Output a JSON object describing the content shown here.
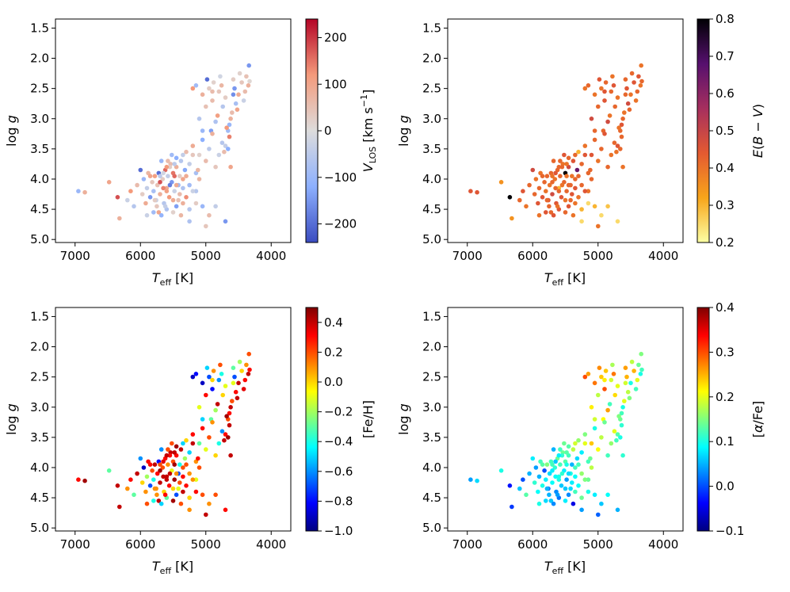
{
  "chart_data": [
    {
      "type": "scatter",
      "panel": "top-left",
      "xlabel": "T_eff [K]",
      "ylabel": "log g",
      "xlim": [
        7300,
        3700
      ],
      "ylim": [
        5.05,
        1.35
      ],
      "xticks": [
        "7000",
        "6000",
        "5000",
        "4000"
      ],
      "yticks": [
        "1.5",
        "2.0",
        "2.5",
        "3.0",
        "3.5",
        "4.0",
        "4.5",
        "5.0"
      ],
      "colorbar": {
        "label": "V_LOS [km s^-1]",
        "colormap": "coolwarm",
        "range": [
          -240,
          240
        ],
        "ticks": [
          "200",
          "100",
          "0",
          "−100",
          "−200"
        ]
      },
      "color_key": "vlos"
    },
    {
      "type": "scatter",
      "panel": "top-right",
      "xlabel": "T_eff [K]",
      "ylabel": "log g",
      "xlim": [
        7300,
        3700
      ],
      "ylim": [
        5.05,
        1.35
      ],
      "xticks": [
        "7000",
        "6000",
        "5000",
        "4000"
      ],
      "yticks": [
        "1.5",
        "2.0",
        "2.5",
        "3.0",
        "3.5",
        "4.0",
        "4.5",
        "5.0"
      ],
      "colorbar": {
        "label": "E(B − V)",
        "colormap": "inferno_r",
        "range": [
          0.2,
          0.8
        ],
        "ticks": [
          "0.8",
          "0.7",
          "0.6",
          "0.5",
          "0.4",
          "0.3",
          "0.2"
        ]
      },
      "color_key": "ebv"
    },
    {
      "type": "scatter",
      "panel": "bottom-left",
      "xlabel": "T_eff [K]",
      "ylabel": "log g",
      "xlim": [
        7300,
        3700
      ],
      "ylim": [
        5.05,
        1.35
      ],
      "xticks": [
        "7000",
        "6000",
        "5000",
        "4000"
      ],
      "yticks": [
        "1.5",
        "2.0",
        "2.5",
        "3.0",
        "3.5",
        "4.0",
        "4.5",
        "5.0"
      ],
      "colorbar": {
        "label": "[Fe/H]",
        "colormap": "jet",
        "range": [
          -1.0,
          0.5
        ],
        "ticks": [
          "0.4",
          "0.2",
          "0.0",
          "−0.2",
          "−0.4",
          "−0.6",
          "−0.8",
          "−1.0"
        ]
      },
      "color_key": "feh"
    },
    {
      "type": "scatter",
      "panel": "bottom-right",
      "xlabel": "T_eff [K]",
      "ylabel": "log g",
      "xlim": [
        7300,
        3700
      ],
      "ylim": [
        5.05,
        1.35
      ],
      "xticks": [
        "7000",
        "6000",
        "5000",
        "4000"
      ],
      "yticks": [
        "1.5",
        "2.0",
        "2.5",
        "3.0",
        "3.5",
        "4.0",
        "4.5",
        "5.0"
      ],
      "colorbar": {
        "label": "[α/Fe]",
        "colormap": "jet",
        "range": [
          -0.1,
          0.4
        ],
        "ticks": [
          "0.4",
          "0.3",
          "0.2",
          "0.1",
          "0.0",
          "−0.1"
        ]
      },
      "color_key": "alpha"
    }
  ],
  "stars": {
    "fields": [
      "teff",
      "logg",
      "vlos",
      "ebv",
      "feh",
      "alpha"
    ],
    "rows": [
      [
        4340,
        2.12,
        -150,
        0.4,
        0.2,
        0.15
      ],
      [
        4330,
        2.38,
        10,
        0.42,
        0.3,
        0.12
      ],
      [
        4350,
        2.45,
        80,
        0.4,
        0.4,
        0.1
      ],
      [
        4380,
        2.3,
        50,
        0.45,
        0.1,
        0.14
      ],
      [
        4400,
        2.55,
        60,
        0.42,
        0.3,
        0.2
      ],
      [
        4420,
        2.7,
        -30,
        0.4,
        0.35,
        0.12
      ],
      [
        4450,
        2.4,
        40,
        0.45,
        0.0,
        0.25
      ],
      [
        4480,
        2.25,
        20,
        0.42,
        -0.2,
        0.18
      ],
      [
        4500,
        2.6,
        90,
        0.4,
        0.4,
        0.1
      ],
      [
        4520,
        2.85,
        100,
        0.42,
        0.4,
        0.15
      ],
      [
        4540,
        2.75,
        -80,
        0.48,
        0.3,
        0.18
      ],
      [
        4560,
        2.5,
        -150,
        0.45,
        -0.7,
        0.25
      ],
      [
        4580,
        2.35,
        30,
        0.42,
        -0.3,
        0.26
      ],
      [
        4600,
        2.9,
        60,
        0.4,
        0.2,
        0.2
      ],
      [
        4620,
        3.0,
        80,
        0.42,
        0.4,
        0.1
      ],
      [
        4640,
        3.1,
        -100,
        0.45,
        0.3,
        0.12
      ],
      [
        4660,
        3.2,
        -90,
        0.42,
        0.2,
        0.14
      ],
      [
        4680,
        3.15,
        120,
        0.4,
        0.45,
        0.15
      ],
      [
        4640,
        3.3,
        140,
        0.42,
        0.4,
        0.11
      ],
      [
        4700,
        3.45,
        -40,
        0.45,
        0.3,
        0.13
      ],
      [
        4720,
        3.55,
        60,
        0.4,
        0.4,
        0.12
      ],
      [
        4660,
        3.5,
        -120,
        0.42,
        0.45,
        0.1
      ],
      [
        4700,
        2.65,
        30,
        0.4,
        -0.1,
        0.2
      ],
      [
        4740,
        2.8,
        -60,
        0.42,
        0.0,
        0.23
      ],
      [
        4760,
        2.45,
        70,
        0.45,
        -0.4,
        0.28
      ],
      [
        4780,
        2.3,
        -20,
        0.4,
        0.2,
        0.17
      ],
      [
        4800,
        2.55,
        40,
        0.42,
        -0.6,
        0.19
      ],
      [
        4820,
        2.95,
        110,
        0.4,
        0.4,
        0.12
      ],
      [
        4850,
        3.05,
        -70,
        0.48,
        -0.2,
        0.26
      ],
      [
        4880,
        2.4,
        20,
        0.42,
        0.1,
        0.24
      ],
      [
        4900,
        2.7,
        60,
        0.45,
        -0.8,
        0.3
      ],
      [
        4920,
        3.2,
        -140,
        0.42,
        -0.3,
        0.21
      ],
      [
        4950,
        2.5,
        30,
        0.4,
        -0.7,
        0.24
      ],
      [
        4980,
        2.35,
        -200,
        0.45,
        -0.5,
        0.27
      ],
      [
        5000,
        2.8,
        50,
        0.42,
        0.3,
        0.18
      ],
      [
        5050,
        2.6,
        80,
        0.4,
        -0.9,
        0.28
      ],
      [
        5100,
        3.0,
        -60,
        0.48,
        -0.1,
        0.22
      ],
      [
        5150,
        2.45,
        -90,
        0.42,
        -0.8,
        0.26
      ],
      [
        5200,
        2.5,
        120,
        0.4,
        -0.9,
        0.3
      ],
      [
        4750,
        3.4,
        -60,
        0.42,
        -0.6,
        0.2
      ],
      [
        4800,
        3.6,
        -30,
        0.4,
        -0.4,
        0.16
      ],
      [
        4850,
        3.8,
        40,
        0.42,
        0.0,
        0.12
      ],
      [
        4900,
        3.25,
        80,
        0.45,
        0.1,
        0.14
      ],
      [
        4950,
        3.5,
        -50,
        0.42,
        0.2,
        0.18
      ],
      [
        5000,
        3.7,
        60,
        0.4,
        -0.1,
        0.21
      ],
      [
        5050,
        3.35,
        -120,
        0.42,
        0.3,
        0.1
      ],
      [
        5100,
        3.6,
        20,
        0.45,
        -0.3,
        0.24
      ],
      [
        5150,
        3.9,
        -80,
        0.42,
        0.1,
        0.12
      ],
      [
        5200,
        3.45,
        90,
        0.4,
        0.3,
        0.15
      ],
      [
        5250,
        3.75,
        -40,
        0.42,
        -0.5,
        0.08
      ],
      [
        5300,
        3.55,
        60,
        0.3,
        0.0,
        0.16
      ],
      [
        5320,
        3.85,
        -130,
        0.65,
        -0.2,
        0.07
      ],
      [
        5350,
        4.0,
        100,
        0.42,
        0.2,
        0.12
      ],
      [
        5380,
        3.7,
        -60,
        0.45,
        0.4,
        0.18
      ],
      [
        5400,
        3.95,
        30,
        0.4,
        -0.4,
        0.05
      ],
      [
        5420,
        4.1,
        -90,
        0.42,
        -0.7,
        0.1
      ],
      [
        5450,
        3.8,
        80,
        0.48,
        0.3,
        0.12
      ],
      [
        5480,
        4.2,
        -30,
        0.42,
        0.45,
        0.04
      ],
      [
        5500,
        3.9,
        150,
        0.8,
        0.2,
        0.13
      ],
      [
        5520,
        4.05,
        -150,
        0.42,
        -0.1,
        0.08
      ],
      [
        5540,
        3.75,
        60,
        0.4,
        0.4,
        0.14
      ],
      [
        5560,
        4.3,
        120,
        0.45,
        0.3,
        0.06
      ],
      [
        5580,
        3.95,
        -40,
        0.42,
        0.1,
        0.12
      ],
      [
        5600,
        4.15,
        90,
        0.3,
        0.4,
        0.1
      ],
      [
        5620,
        3.85,
        160,
        0.42,
        0.3,
        0.14
      ],
      [
        5640,
        4.4,
        -60,
        0.45,
        0.0,
        0.03
      ],
      [
        5660,
        4.0,
        30,
        0.4,
        0.2,
        0.11
      ],
      [
        5680,
        3.7,
        -100,
        0.42,
        -0.6,
        0.05
      ],
      [
        5700,
        4.25,
        80,
        0.48,
        0.4,
        0.09
      ],
      [
        5720,
        3.9,
        -200,
        0.42,
        -0.8,
        0.12
      ],
      [
        5740,
        4.1,
        50,
        0.4,
        0.3,
        0.07
      ],
      [
        5760,
        4.35,
        -30,
        0.45,
        0.1,
        0.02
      ],
      [
        5780,
        3.95,
        110,
        0.42,
        0.4,
        0.15
      ],
      [
        5800,
        4.2,
        -80,
        0.4,
        -0.4,
        0.08
      ],
      [
        5820,
        4.05,
        40,
        0.42,
        0.2,
        0.0
      ],
      [
        5850,
        4.3,
        -150,
        0.45,
        -0.7,
        0.1
      ],
      [
        5880,
        3.9,
        70,
        0.4,
        0.3,
        0.12
      ],
      [
        5900,
        4.15,
        -40,
        0.42,
        -0.2,
        0.05
      ],
      [
        5920,
        4.4,
        90,
        0.45,
        0.1,
        0.09
      ],
      [
        5950,
        4.0,
        -100,
        0.4,
        -0.9,
        0.04
      ],
      [
        5970,
        4.25,
        30,
        0.42,
        0.0,
        0.11
      ],
      [
        6000,
        3.85,
        -200,
        0.48,
        -0.6,
        0.08
      ],
      [
        6050,
        4.1,
        60,
        0.42,
        0.4,
        0.05
      ],
      [
        6100,
        4.45,
        -60,
        0.4,
        -0.3,
        0.13
      ],
      [
        6150,
        4.2,
        120,
        0.45,
        0.3,
        0.0
      ],
      [
        6200,
        4.35,
        -30,
        0.42,
        0.1,
        0.06
      ],
      [
        5100,
        4.0,
        70,
        0.42,
        0.2,
        0.18
      ],
      [
        5150,
        4.2,
        -60,
        0.4,
        -0.1,
        0.14
      ],
      [
        5200,
        3.6,
        40,
        0.45,
        0.4,
        0.2
      ],
      [
        5250,
        4.1,
        -90,
        0.42,
        0.1,
        0.16
      ],
      [
        5300,
        4.3,
        130,
        0.4,
        0.3,
        0.09
      ],
      [
        5350,
        3.6,
        -40,
        0.42,
        -0.5,
        0.19
      ],
      [
        5400,
        4.25,
        60,
        0.45,
        0.2,
        0.08
      ],
      [
        5450,
        3.65,
        -120,
        0.42,
        0.45,
        0.13
      ],
      [
        5500,
        4.35,
        90,
        0.4,
        0.0,
        0.06
      ],
      [
        5550,
        3.8,
        30,
        0.42,
        0.3,
        0.11
      ],
      [
        5600,
        4.5,
        -70,
        0.45,
        -0.3,
        0.02
      ],
      [
        5650,
        4.15,
        140,
        0.42,
        0.4,
        0.09
      ],
      [
        5700,
        3.95,
        -50,
        0.4,
        0.2,
        0.12
      ],
      [
        5750,
        4.45,
        40,
        0.42,
        0.1,
        0.05
      ],
      [
        5800,
        4.55,
        -90,
        0.45,
        -0.4,
        0.07
      ],
      [
        5850,
        3.95,
        100,
        0.42,
        0.3,
        0.13
      ],
      [
        5900,
        4.6,
        -30,
        0.4,
        0.2,
        0.1
      ],
      [
        5500,
        4.55,
        20,
        0.42,
        0.45,
        0.08
      ],
      [
        5450,
        4.45,
        -140,
        0.45,
        -0.7,
        0.03
      ],
      [
        5350,
        4.4,
        80,
        0.4,
        0.4,
        0.12
      ],
      [
        5250,
        4.5,
        -60,
        0.3,
        0.0,
        0.14
      ],
      [
        5150,
        4.4,
        30,
        0.25,
        0.3,
        0.1
      ],
      [
        5050,
        4.45,
        -100,
        0.3,
        0.2,
        0.08
      ],
      [
        4950,
        4.6,
        60,
        0.25,
        0.1,
        0.06
      ],
      [
        4850,
        4.45,
        -40,
        0.28,
        0.2,
        0.09
      ],
      [
        4700,
        4.7,
        -150,
        0.25,
        0.3,
        0.05
      ],
      [
        5250,
        4.7,
        -70,
        0.25,
        0.1,
        0.04
      ],
      [
        5000,
        4.78,
        40,
        0.4,
        0.4,
        0.01
      ],
      [
        6480,
        4.05,
        100,
        0.35,
        -0.3,
        0.1
      ],
      [
        6350,
        4.3,
        180,
        0.8,
        0.4,
        -0.03
      ],
      [
        6320,
        4.65,
        80,
        0.35,
        0.4,
        -0.01
      ],
      [
        6950,
        4.2,
        -100,
        0.45,
        0.3,
        0.04
      ],
      [
        6850,
        4.22,
        80,
        0.45,
        0.45,
        0.07
      ],
      [
        5380,
        4.6,
        70,
        0.4,
        0.2,
        -0.05
      ],
      [
        5600,
        4.2,
        110,
        0.42,
        0.4,
        0.1
      ],
      [
        5650,
        3.9,
        -20,
        0.45,
        0.35,
        0.06
      ],
      [
        5700,
        4.05,
        180,
        0.42,
        0.45,
        0.08
      ],
      [
        5550,
        4.1,
        -180,
        0.4,
        0.4,
        0.11
      ],
      [
        5450,
        4.1,
        90,
        0.42,
        0.1,
        0.07
      ],
      [
        5350,
        4.15,
        -70,
        0.45,
        0.3,
        0.09
      ],
      [
        5580,
        3.7,
        60,
        0.42,
        0.2,
        0.12
      ],
      [
        5620,
        4.45,
        -40,
        0.4,
        0.3,
        0.04
      ],
      [
        5720,
        4.55,
        100,
        0.42,
        0.4,
        0.06
      ],
      [
        5680,
        4.6,
        -110,
        0.45,
        -0.5,
        0.03
      ],
      [
        5780,
        4.35,
        30,
        0.42,
        0.1,
        0.05
      ],
      [
        5480,
        3.95,
        160,
        0.4,
        0.45,
        0.1
      ],
      [
        5600,
        3.8,
        120,
        0.42,
        0.4,
        0.08
      ],
      [
        5520,
        3.6,
        -90,
        0.45,
        0.2,
        0.14
      ],
      [
        5420,
        4.35,
        50,
        0.42,
        -0.1,
        0.07
      ],
      [
        5480,
        3.75,
        -50,
        0.4,
        0.4,
        0.13
      ],
      [
        5300,
        3.95,
        90,
        0.42,
        0.2,
        0.12
      ],
      [
        5200,
        4.2,
        -30,
        0.45,
        0.1,
        0.15
      ],
      [
        5120,
        3.85,
        70,
        0.42,
        0.3,
        0.14
      ],
      [
        4620,
        3.8,
        100,
        0.4,
        0.4,
        0.11
      ],
      [
        4580,
        2.6,
        -160,
        0.42,
        -0.1,
        0.19
      ],
      [
        4900,
        2.55,
        60,
        0.45,
        0.0,
        0.22
      ],
      [
        5050,
        3.2,
        -100,
        0.42,
        -0.5,
        0.19
      ]
    ]
  }
}
